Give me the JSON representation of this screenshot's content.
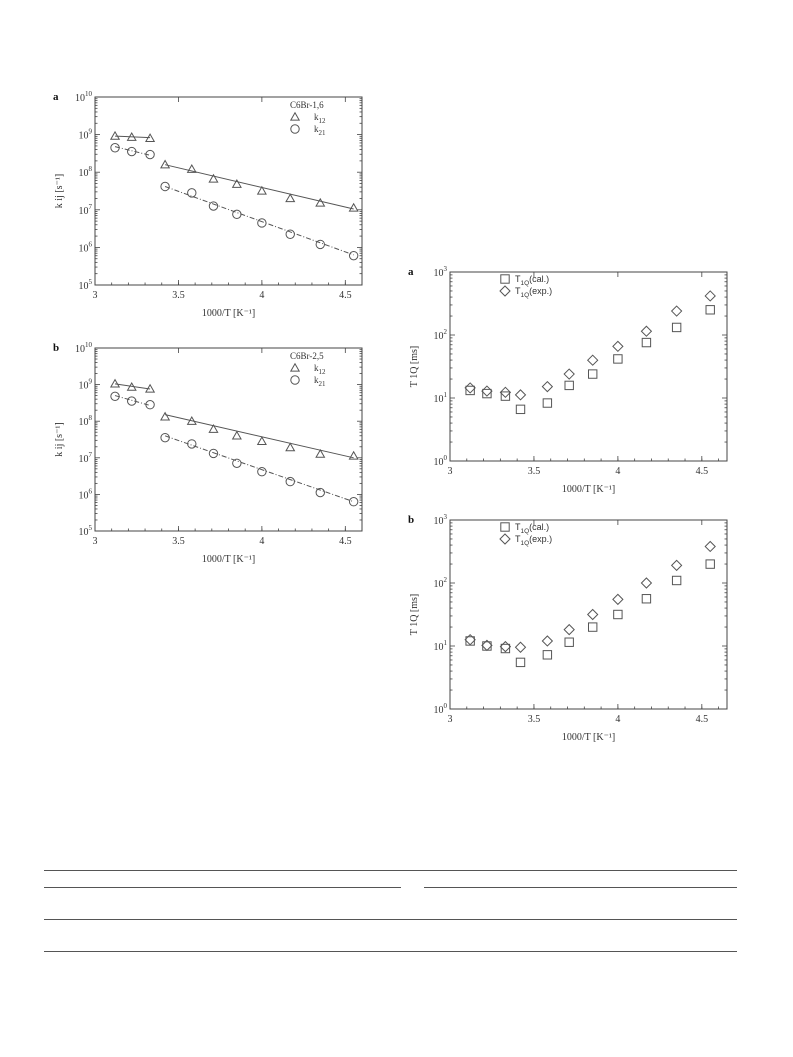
{
  "chart_data": [
    {
      "id": "left-a",
      "type": "scatter",
      "panel_label": "a",
      "title": "C6Br-1,6",
      "xlabel": "1000/T [K⁻¹]",
      "ylabel": "k ij [s⁻¹]",
      "xlim": [
        3.0,
        4.6
      ],
      "ylim": [
        5,
        10
      ],
      "yscale": "log10",
      "x_ticks": [
        "3",
        "3.5",
        "4",
        "4.5"
      ],
      "x_tick_values": [
        3,
        3.5,
        4,
        4.5
      ],
      "y_tick_exponents": [
        5,
        6,
        7,
        8,
        9,
        10
      ],
      "legend_position": "top-right",
      "series": [
        {
          "name": "k12",
          "marker": "triangle",
          "x": [
            3.12,
            3.22,
            3.33,
            3.42,
            3.58,
            3.71,
            3.85,
            4.0,
            4.17,
            4.35,
            4.55
          ],
          "log10_y": [
            8.96,
            8.93,
            8.9,
            8.2,
            8.08,
            7.82,
            7.68,
            7.5,
            7.3,
            7.18,
            7.05
          ]
        },
        {
          "name": "k21",
          "marker": "circle",
          "x": [
            3.12,
            3.22,
            3.33,
            3.42,
            3.58,
            3.71,
            3.85,
            4.0,
            4.17,
            4.35,
            4.55
          ],
          "log10_y": [
            8.65,
            8.55,
            8.47,
            7.62,
            7.45,
            7.1,
            6.88,
            6.65,
            6.35,
            6.08,
            5.78
          ]
        }
      ],
      "fits": [
        {
          "series": "k12",
          "style": "solid",
          "segments": [
            [
              [
                3.12,
                8.96
              ],
              [
                3.33,
                8.92
              ]
            ],
            [
              [
                3.42,
                8.2
              ],
              [
                4.55,
                7.02
              ]
            ]
          ]
        },
        {
          "series": "k21",
          "style": "dashdot",
          "segments": [
            [
              [
                3.12,
                8.68
              ],
              [
                3.33,
                8.45
              ]
            ],
            [
              [
                3.42,
                7.62
              ],
              [
                4.55,
                5.8
              ]
            ]
          ]
        }
      ]
    },
    {
      "id": "left-b",
      "type": "scatter",
      "panel_label": "b",
      "title": "C6Br-2,5",
      "xlabel": "1000/T [K⁻¹]",
      "ylabel": "k ij [s⁻¹]",
      "xlim": [
        3.0,
        4.6
      ],
      "ylim": [
        5,
        10
      ],
      "yscale": "log10",
      "x_ticks": [
        "3",
        "3.5",
        "4",
        "4.5"
      ],
      "x_tick_values": [
        3,
        3.5,
        4,
        4.5
      ],
      "y_tick_exponents": [
        5,
        6,
        7,
        8,
        9,
        10
      ],
      "legend_position": "top-right",
      "series": [
        {
          "name": "k12",
          "marker": "triangle",
          "x": [
            3.12,
            3.22,
            3.33,
            3.42,
            3.58,
            3.71,
            3.85,
            4.0,
            4.17,
            4.35,
            4.55
          ],
          "log10_y": [
            9.02,
            8.93,
            8.88,
            8.12,
            8.0,
            7.78,
            7.6,
            7.45,
            7.28,
            7.1,
            7.05
          ]
        },
        {
          "name": "k21",
          "marker": "circle",
          "x": [
            3.12,
            3.22,
            3.33,
            3.42,
            3.58,
            3.71,
            3.85,
            4.0,
            4.17,
            4.35,
            4.55
          ],
          "log10_y": [
            8.68,
            8.55,
            8.45,
            7.55,
            7.38,
            7.12,
            6.85,
            6.62,
            6.35,
            6.05,
            5.8
          ]
        }
      ],
      "fits": [
        {
          "series": "k12",
          "style": "solid",
          "segments": [
            [
              [
                3.12,
                9.02
              ],
              [
                3.33,
                8.88
              ]
            ],
            [
              [
                3.42,
                8.18
              ],
              [
                4.55,
                7.0
              ]
            ]
          ]
        },
        {
          "series": "k21",
          "style": "dashdot",
          "segments": [
            [
              [
                3.12,
                8.7
              ],
              [
                3.33,
                8.43
              ]
            ],
            [
              [
                3.42,
                7.6
              ],
              [
                4.55,
                5.8
              ]
            ]
          ]
        }
      ]
    },
    {
      "id": "right-a",
      "type": "scatter",
      "panel_label": "a",
      "xlabel": "1000/T [K⁻¹]",
      "ylabel": "T 1Q [ms]",
      "xlim": [
        3.0,
        4.65
      ],
      "ylim": [
        0,
        3
      ],
      "yscale": "log10",
      "x_ticks": [
        "3",
        "3.5",
        "4",
        "4.5"
      ],
      "x_tick_values": [
        3,
        3.5,
        4,
        4.5
      ],
      "y_tick_exponents": [
        0,
        1,
        2,
        3
      ],
      "legend_position": "top-left",
      "series": [
        {
          "name": "T1Q(cal.)",
          "marker": "square",
          "x": [
            3.12,
            3.22,
            3.33,
            3.42,
            3.58,
            3.71,
            3.85,
            4.0,
            4.17,
            4.35,
            4.55
          ],
          "log10_y": [
            1.12,
            1.07,
            1.03,
            0.82,
            0.92,
            1.2,
            1.38,
            1.62,
            1.88,
            2.12,
            2.4
          ]
        },
        {
          "name": "T1Q(exp.)",
          "marker": "diamond",
          "x": [
            3.12,
            3.22,
            3.33,
            3.42,
            3.58,
            3.71,
            3.85,
            4.0,
            4.17,
            4.35,
            4.55
          ],
          "log10_y": [
            1.16,
            1.11,
            1.09,
            1.05,
            1.18,
            1.38,
            1.6,
            1.82,
            2.06,
            2.38,
            2.62
          ]
        }
      ]
    },
    {
      "id": "right-b",
      "type": "scatter",
      "panel_label": "b",
      "xlabel": "1000/T [K⁻¹]",
      "ylabel": "T 1Q [ms]",
      "xlim": [
        3.0,
        4.65
      ],
      "ylim": [
        0,
        3
      ],
      "yscale": "log10",
      "x_ticks": [
        "3",
        "3.5",
        "4",
        "4.5"
      ],
      "x_tick_values": [
        3,
        3.5,
        4,
        4.5
      ],
      "y_tick_exponents": [
        0,
        1,
        2,
        3
      ],
      "legend_position": "top-left",
      "series": [
        {
          "name": "T1Q(cal.)",
          "marker": "square",
          "x": [
            3.12,
            3.22,
            3.33,
            3.42,
            3.58,
            3.71,
            3.85,
            4.0,
            4.17,
            4.35,
            4.55
          ],
          "log10_y": [
            1.08,
            1.0,
            0.96,
            0.74,
            0.86,
            1.06,
            1.3,
            1.5,
            1.75,
            2.04,
            2.3
          ]
        },
        {
          "name": "T1Q(exp.)",
          "marker": "diamond",
          "x": [
            3.12,
            3.22,
            3.33,
            3.42,
            3.58,
            3.71,
            3.85,
            4.0,
            4.17,
            4.35,
            4.55
          ],
          "log10_y": [
            1.1,
            1.01,
            0.99,
            0.98,
            1.08,
            1.26,
            1.5,
            1.74,
            2.0,
            2.28,
            2.58
          ]
        }
      ]
    }
  ]
}
